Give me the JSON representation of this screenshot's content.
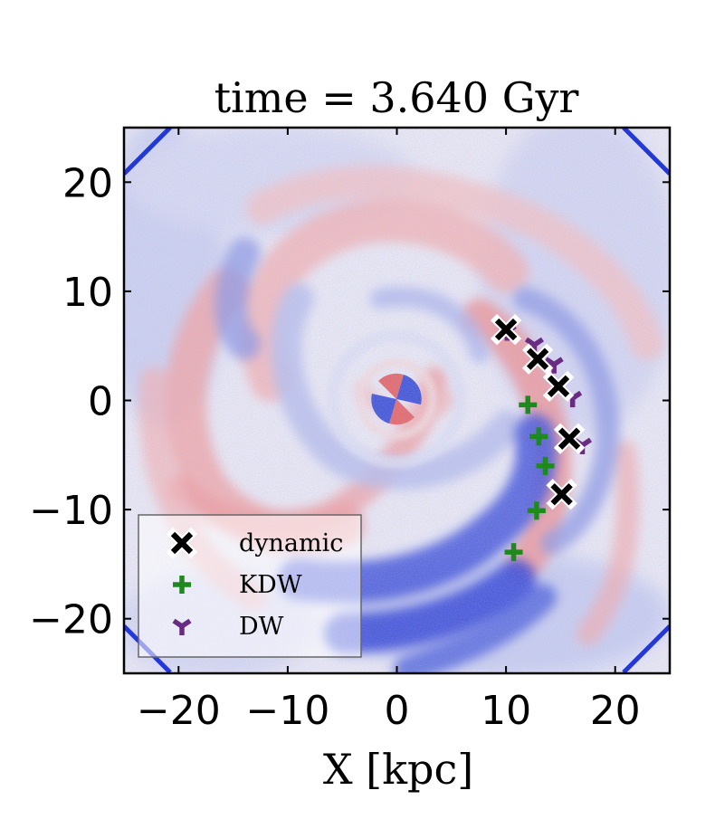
{
  "chart_data": {
    "type": "scatter",
    "title": "time = 3.640 Gyr",
    "xlabel": "X [kpc]",
    "ylabel": "",
    "xlim": [
      -25,
      25
    ],
    "ylim": [
      -25,
      25
    ],
    "xticks": [
      -20,
      -10,
      0,
      10,
      20
    ],
    "yticks": [
      20,
      10,
      0,
      -10,
      -20
    ],
    "xtick_labels": [
      "−20",
      "−10",
      "0",
      "10",
      "20"
    ],
    "ytick_labels": [
      "20",
      "10",
      "0",
      "−10",
      "−20"
    ],
    "background": "face-on disc residual map, red/blue diverging colour scale, no colourbar shown",
    "legend_position": "lower-left",
    "series": [
      {
        "name": "dynamic",
        "marker": "x",
        "color": "#000000",
        "x": [
          10.0,
          12.9,
          14.8,
          15.8,
          15.1
        ],
        "y": [
          6.5,
          3.8,
          1.3,
          -3.5,
          -8.6
        ]
      },
      {
        "name": "KDW",
        "marker": "+",
        "color": "#1e8a1e",
        "x": [
          12.0,
          13.0,
          13.6,
          12.8,
          10.7
        ],
        "y": [
          -0.4,
          -3.3,
          -6.0,
          -10.1,
          -13.9
        ]
      },
      {
        "name": "DW",
        "marker": "tri_down",
        "color": "#6a2c82",
        "x": [
          10.1,
          12.6,
          14.4,
          16.1,
          17.0
        ],
        "y": [
          6.3,
          5.1,
          3.3,
          0.2,
          -4.1
        ]
      }
    ]
  }
}
